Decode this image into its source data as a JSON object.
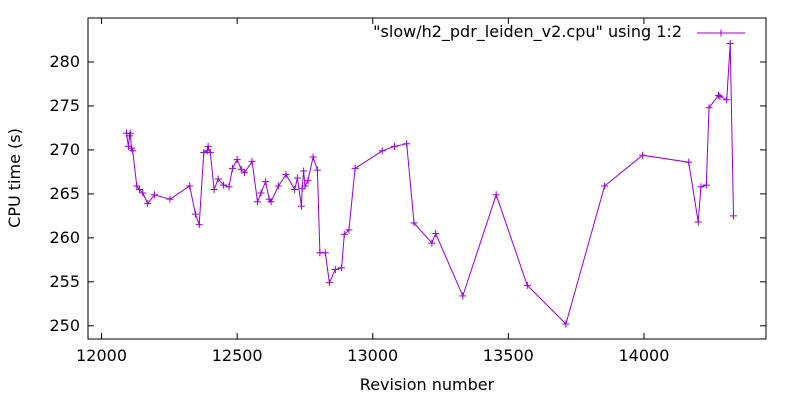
{
  "chart_data": {
    "type": "line",
    "title": "",
    "xlabel": "Revision number",
    "ylabel": "CPU time (s)",
    "xlim": [
      11950,
      14450
    ],
    "ylim": [
      248.5,
      285
    ],
    "xticks": [
      12000,
      12500,
      13000,
      13500,
      14000
    ],
    "yticks": [
      250,
      255,
      260,
      265,
      270,
      275,
      280
    ],
    "grid": false,
    "legend_position": "top-right",
    "series": [
      {
        "name": "\"slow/h2_pdr_leiden_v2.cpu\" using 1:2",
        "color": "#9400d3",
        "marker": "plus",
        "points": [
          [
            12092,
            271.9
          ],
          [
            12099,
            270.4
          ],
          [
            12103,
            271.6
          ],
          [
            12106,
            271.9
          ],
          [
            12110,
            270.2
          ],
          [
            12115,
            269.9
          ],
          [
            12130,
            265.9
          ],
          [
            12140,
            265.5
          ],
          [
            12152,
            265.1
          ],
          [
            12170,
            263.9
          ],
          [
            12195,
            264.9
          ],
          [
            12252,
            264.4
          ],
          [
            12325,
            265.9
          ],
          [
            12346,
            262.7
          ],
          [
            12360,
            261.5
          ],
          [
            12377,
            269.7
          ],
          [
            12390,
            269.9
          ],
          [
            12393,
            270.4
          ],
          [
            12401,
            269.7
          ],
          [
            12415,
            265.5
          ],
          [
            12430,
            266.7
          ],
          [
            12450,
            266.0
          ],
          [
            12470,
            265.8
          ],
          [
            12483,
            267.9
          ],
          [
            12500,
            268.9
          ],
          [
            12515,
            267.8
          ],
          [
            12527,
            267.4
          ],
          [
            12555,
            268.7
          ],
          [
            12575,
            264.1
          ],
          [
            12588,
            265.1
          ],
          [
            12605,
            266.4
          ],
          [
            12618,
            264.4
          ],
          [
            12625,
            264.1
          ],
          [
            12652,
            265.9
          ],
          [
            12680,
            267.2
          ],
          [
            12712,
            265.5
          ],
          [
            12722,
            266.8
          ],
          [
            12737,
            263.6
          ],
          [
            12740,
            265.6
          ],
          [
            12745,
            267.6
          ],
          [
            12750,
            265.9
          ],
          [
            12761,
            266.5
          ],
          [
            12780,
            269.2
          ],
          [
            12796,
            267.7
          ],
          [
            12805,
            258.3
          ],
          [
            12825,
            258.3
          ],
          [
            12840,
            254.9
          ],
          [
            12862,
            256.4
          ],
          [
            12885,
            256.6
          ],
          [
            12895,
            260.4
          ],
          [
            12912,
            260.9
          ],
          [
            12935,
            267.9
          ],
          [
            13035,
            269.9
          ],
          [
            13080,
            270.4
          ],
          [
            13125,
            270.7
          ],
          [
            13152,
            261.7
          ],
          [
            13218,
            259.4
          ],
          [
            13232,
            260.5
          ],
          [
            13332,
            253.4
          ],
          [
            13455,
            264.9
          ],
          [
            13570,
            254.6
          ],
          [
            13712,
            250.2
          ],
          [
            13855,
            265.9
          ],
          [
            13995,
            269.4
          ],
          [
            14165,
            268.6
          ],
          [
            14200,
            261.8
          ],
          [
            14210,
            265.8
          ],
          [
            14230,
            266.0
          ],
          [
            14240,
            274.8
          ],
          [
            14275,
            276.2
          ],
          [
            14280,
            276.1
          ],
          [
            14305,
            275.7
          ],
          [
            14318,
            282.1
          ],
          [
            14330,
            262.5
          ]
        ]
      }
    ]
  }
}
